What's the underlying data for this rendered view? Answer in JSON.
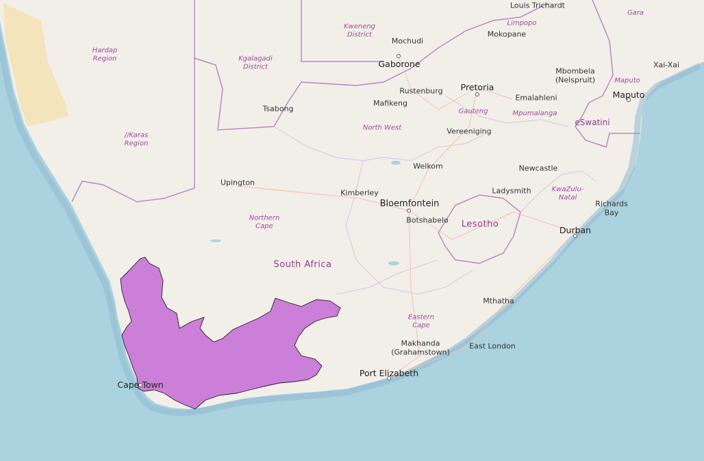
{
  "colors": {
    "ocean": "#aad3df",
    "land": "#f2efe9",
    "desert": "#f4e4bc",
    "highlight": "#cc7fd8",
    "border": "#b58bc4"
  },
  "labels": {
    "louis_trichardt": "Louis Trichardt",
    "gara": "Gara",
    "limpopo": "Limpopo",
    "kweneng": "Kweneng\nDistrict",
    "mochudi": "Mochudi",
    "mokopane": "Mokopane",
    "hardap": "Hardap\nRegion",
    "gaborone": "Gaborone",
    "xai_xai": "Xai-Xai",
    "kgalagadi": "Kgalagadi\nDistrict",
    "mbombela": "Mbombela\n(Nelspruit)",
    "maputo_region": "Maputo",
    "maputo": "Maputo",
    "rustenburg": "Rustenburg",
    "pretoria": "Pretoria",
    "emalahleni": "Emalahleni",
    "mafikeng": "Mafikeng",
    "tsabong": "Tsabong",
    "gauteng": "Gauteng",
    "mpumalanga": "Mpumalanga",
    "eswatini": "eSwatini",
    "north_west": "North West",
    "vereeniging": "Vereeniging",
    "karas": "//Karas\nRegion",
    "welkom": "Welkom",
    "newcastle": "Newcastle",
    "upington": "Upington",
    "kimberley": "Kimberley",
    "ladysmith": "Ladysmith",
    "kwazulu": "KwaZulu-\nNatal",
    "richards_bay": "Richards\nBay",
    "bloemfontein": "Bloemfontein",
    "northern_cape": "Northern\nCape",
    "botshabelo": "Botshabelo",
    "lesotho": "Lesotho",
    "durban": "Durban",
    "south_africa": "South Africa",
    "mthatha": "Mthatha",
    "eastern_cape": "Eastern\nCape",
    "makhanda": "Makhanda\n(Grahamstown)",
    "east_london": "East London",
    "port_elizabeth": "Port Elizabeth",
    "cape_town": "Cape Town"
  }
}
